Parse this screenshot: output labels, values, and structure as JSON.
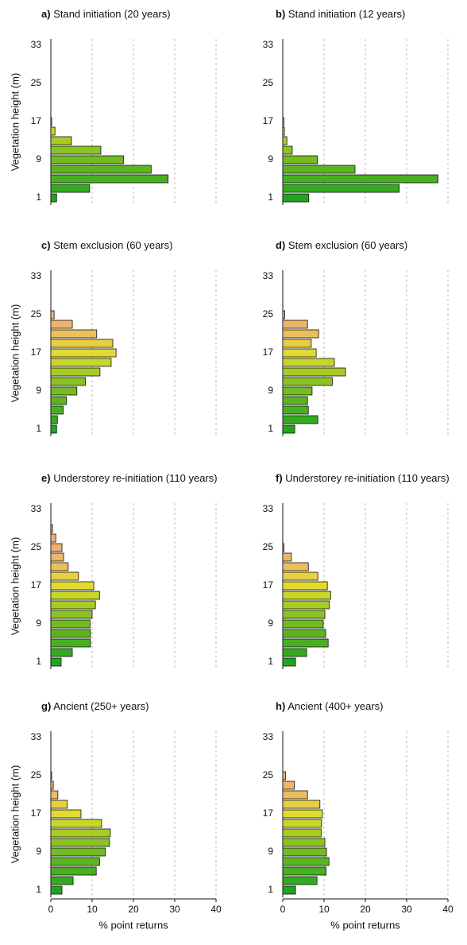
{
  "chart_data": [
    {
      "type": "bar",
      "panel": "a)",
      "title": "Stand initiation (20 years)",
      "ylabel": "Vegetation height (m)",
      "categories": [
        1,
        null,
        null,
        null,
        9,
        null,
        null,
        null,
        17,
        null,
        null,
        null,
        25,
        null,
        null,
        null,
        33
      ],
      "values": [
        1.4,
        9.4,
        28.4,
        24.3,
        17.6,
        12.1,
        5.0,
        1.0,
        0.2,
        0,
        0,
        0,
        0,
        0,
        0,
        0,
        0
      ],
      "colors": [
        "#1ea61e",
        "#33ab1e",
        "#48b020",
        "#5bb522",
        "#72bb22",
        "#8ac322",
        "#a8cc24",
        "#c8d62a",
        "#e2da2e",
        "#e8cf40",
        "#ecbf5a",
        "#eeb56a",
        "#efb070",
        "#f0ae74",
        "#f0ae74",
        "#f0ae74",
        "#f0ae74"
      ],
      "xlim": [
        0,
        40
      ],
      "xticks": [
        0,
        10,
        20,
        30,
        40
      ],
      "grid": true
    },
    {
      "type": "bar",
      "panel": "b)",
      "title": "Stand initiation (12 years)",
      "categories": [
        1,
        null,
        null,
        null,
        9,
        null,
        null,
        null,
        17,
        null,
        null,
        null,
        25,
        null,
        null,
        null,
        33
      ],
      "values": [
        6.3,
        28.2,
        37.6,
        17.5,
        8.4,
        2.3,
        1.0,
        0.4,
        0.3,
        0,
        0,
        0,
        0,
        0,
        0,
        0,
        0
      ],
      "colors": [
        "#1ea61e",
        "#33ab1e",
        "#48b020",
        "#5bb522",
        "#72bb22",
        "#8ac322",
        "#a8cc24",
        "#c8d62a",
        "#e2da2e",
        "#e8cf40",
        "#ecbf5a",
        "#eeb56a",
        "#efb070",
        "#f0ae74",
        "#f0ae74",
        "#f0ae74",
        "#f0ae74"
      ],
      "xlim": [
        0,
        40
      ],
      "xticks": [
        0,
        10,
        20,
        30,
        40
      ],
      "grid": true
    },
    {
      "type": "bar",
      "panel": "c)",
      "title": "Stem exclusion (60 years)",
      "ylabel": "Vegetation height (m)",
      "categories": [
        1,
        null,
        null,
        null,
        9,
        null,
        null,
        null,
        17,
        null,
        null,
        null,
        25,
        null,
        null,
        null,
        33
      ],
      "values": [
        1.4,
        1.6,
        3.0,
        3.8,
        6.3,
        8.4,
        11.9,
        14.6,
        15.8,
        15.0,
        11.1,
        5.2,
        0.8,
        0,
        0,
        0,
        0
      ],
      "colors": [
        "#1ea61e",
        "#33ab1e",
        "#48b020",
        "#5bb522",
        "#72bb22",
        "#8ac322",
        "#a8cc24",
        "#c8d62a",
        "#e2da2e",
        "#e8cf40",
        "#ecbf5a",
        "#eeb56a",
        "#efb070",
        "#f0ae74",
        "#f0ae74",
        "#f0ae74",
        "#f0ae74"
      ],
      "xlim": [
        0,
        40
      ],
      "xticks": [
        0,
        10,
        20,
        30,
        40
      ],
      "grid": true
    },
    {
      "type": "bar",
      "panel": "d)",
      "title": "Stem exclusion (60 years)",
      "categories": [
        1,
        null,
        null,
        null,
        9,
        null,
        null,
        null,
        17,
        null,
        null,
        null,
        25,
        null,
        null,
        null,
        33
      ],
      "values": [
        2.9,
        8.5,
        6.2,
        6.0,
        7.1,
        12.0,
        15.2,
        12.5,
        8.1,
        6.9,
        8.7,
        6.0,
        0.5,
        0,
        0,
        0,
        0
      ],
      "colors": [
        "#1ea61e",
        "#33ab1e",
        "#48b020",
        "#5bb522",
        "#72bb22",
        "#8ac322",
        "#a8cc24",
        "#c8d62a",
        "#e2da2e",
        "#e8cf40",
        "#ecbf5a",
        "#eeb56a",
        "#efb070",
        "#f0ae74",
        "#f0ae74",
        "#f0ae74",
        "#f0ae74"
      ],
      "xlim": [
        0,
        40
      ],
      "xticks": [
        0,
        10,
        20,
        30,
        40
      ],
      "grid": true
    },
    {
      "type": "bar",
      "panel": "e)",
      "title": "Understorey re-initiation (110 years)",
      "ylabel": "Vegetation height (m)",
      "categories": [
        1,
        null,
        null,
        null,
        9,
        null,
        null,
        null,
        17,
        null,
        null,
        null,
        25,
        null,
        null,
        null,
        33
      ],
      "values": [
        2.5,
        5.2,
        9.6,
        9.6,
        9.5,
        10.0,
        10.8,
        11.8,
        10.4,
        6.7,
        4.2,
        3.1,
        2.7,
        1.2,
        0.4,
        0,
        0
      ],
      "colors": [
        "#1ea61e",
        "#33ab1e",
        "#48b020",
        "#5bb522",
        "#72bb22",
        "#8ac322",
        "#a8cc24",
        "#c8d62a",
        "#e2da2e",
        "#e8cf40",
        "#ecbf5a",
        "#eeb56a",
        "#efb070",
        "#f0ae74",
        "#f0ae74",
        "#f0ae74",
        "#f0ae74"
      ],
      "xlim": [
        0,
        40
      ],
      "xticks": [
        0,
        10,
        20,
        30,
        40
      ],
      "grid": true
    },
    {
      "type": "bar",
      "panel": "f)",
      "title": "Understorey re-initiation (110 years)",
      "categories": [
        1,
        null,
        null,
        null,
        9,
        null,
        null,
        null,
        17,
        null,
        null,
        null,
        25,
        null,
        null,
        null,
        33
      ],
      "values": [
        3.1,
        5.8,
        11.0,
        10.4,
        9.8,
        10.2,
        11.3,
        11.6,
        10.8,
        8.5,
        6.2,
        2.1,
        0.3,
        0,
        0,
        0,
        0
      ],
      "colors": [
        "#1ea61e",
        "#33ab1e",
        "#48b020",
        "#5bb522",
        "#72bb22",
        "#8ac322",
        "#a8cc24",
        "#c8d62a",
        "#e2da2e",
        "#e8cf40",
        "#ecbf5a",
        "#eeb56a",
        "#efb070",
        "#f0ae74",
        "#f0ae74",
        "#f0ae74",
        "#f0ae74"
      ],
      "xlim": [
        0,
        40
      ],
      "xticks": [
        0,
        10,
        20,
        30,
        40
      ],
      "grid": true
    },
    {
      "type": "bar",
      "panel": "g)",
      "title": "Ancient (250+ years)",
      "ylabel": "Vegetation height (m)",
      "xlabel": "% point returns",
      "categories": [
        1,
        null,
        null,
        null,
        9,
        null,
        null,
        null,
        17,
        null,
        null,
        null,
        25,
        null,
        null,
        null,
        33
      ],
      "values": [
        2.7,
        5.4,
        11.0,
        11.8,
        13.2,
        14.2,
        14.4,
        12.3,
        7.3,
        4.0,
        1.7,
        0.6,
        0.2,
        0,
        0,
        0,
        0
      ],
      "colors": [
        "#1ea61e",
        "#33ab1e",
        "#48b020",
        "#5bb522",
        "#72bb22",
        "#8ac322",
        "#a8cc24",
        "#c8d62a",
        "#e2da2e",
        "#e8cf40",
        "#ecbf5a",
        "#eeb56a",
        "#efb070",
        "#f0ae74",
        "#f0ae74",
        "#f0ae74",
        "#f0ae74"
      ],
      "xlim": [
        0,
        40
      ],
      "xticks": [
        0,
        10,
        20,
        30,
        40
      ],
      "grid": true
    },
    {
      "type": "bar",
      "panel": "h)",
      "title": "Ancient (400+ years)",
      "xlabel": "% point returns",
      "categories": [
        1,
        null,
        null,
        null,
        9,
        null,
        null,
        null,
        17,
        null,
        null,
        null,
        25,
        null,
        null,
        null,
        33
      ],
      "values": [
        3.1,
        8.3,
        10.5,
        11.2,
        10.6,
        10.2,
        9.3,
        9.4,
        9.6,
        9.0,
        6.0,
        2.8,
        0.7,
        0,
        0,
        0,
        0
      ],
      "colors": [
        "#1ea61e",
        "#33ab1e",
        "#48b020",
        "#5bb522",
        "#72bb22",
        "#8ac322",
        "#a8cc24",
        "#c8d62a",
        "#e2da2e",
        "#e8cf40",
        "#ecbf5a",
        "#eeb56a",
        "#efb070",
        "#f0ae74",
        "#f0ae74",
        "#f0ae74",
        "#f0ae74"
      ],
      "xlim": [
        0,
        40
      ],
      "xticks": [
        0,
        10,
        20,
        30,
        40
      ],
      "grid": true
    }
  ]
}
